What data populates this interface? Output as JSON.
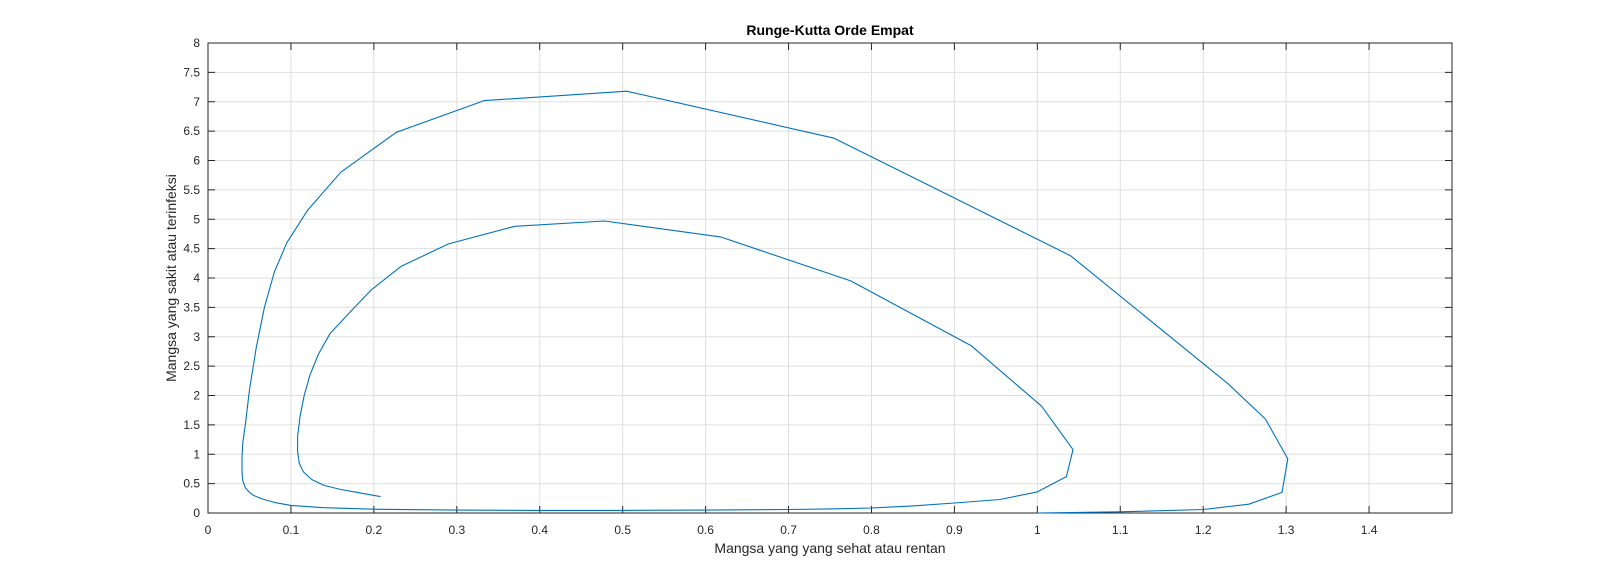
{
  "chart_data": {
    "type": "line",
    "title": "Runge-Kutta Orde Empat",
    "xlabel": "Mangsa yang yang sehat atau rentan",
    "ylabel": "Mangsa yang sakit atau terinfeksi",
    "xlim": [
      0,
      1.5
    ],
    "ylim": [
      0,
      8
    ],
    "xticks": [
      0,
      0.1,
      0.2,
      0.3,
      0.4,
      0.5,
      0.6,
      0.7,
      0.8,
      0.9,
      1,
      1.1,
      1.2,
      1.3,
      1.4
    ],
    "yticks": [
      0,
      0.5,
      1,
      1.5,
      2,
      2.5,
      3,
      3.5,
      4,
      4.5,
      5,
      5.5,
      6,
      6.5,
      7,
      7.5,
      8
    ],
    "xtick_labels": [
      "0",
      "0.1",
      "0.2",
      "0.3",
      "0.4",
      "0.5",
      "0.6",
      "0.7",
      "0.8",
      "0.9",
      "1",
      "1.1",
      "1.2",
      "1.3",
      "1.4"
    ],
    "ytick_labels": [
      "0",
      "0.5",
      "1",
      "1.5",
      "2",
      "2.5",
      "3",
      "3.5",
      "4",
      "4.5",
      "5",
      "5.5",
      "6",
      "6.5",
      "7",
      "7.5",
      "8"
    ],
    "grid": true,
    "box": true,
    "color": "#0072BD",
    "series": [
      {
        "x": [
          1.0,
          1.1,
          1.2,
          1.255,
          1.295,
          1.302,
          1.275,
          1.23,
          1.04,
          0.755,
          0.505,
          0.333,
          0.227,
          0.16,
          0.12,
          0.095,
          0.08,
          0.068,
          0.058,
          0.05,
          0.045,
          0.042,
          0.041,
          0.041,
          0.042,
          0.045,
          0.05,
          0.055,
          0.065,
          0.08,
          0.1,
          0.14,
          0.2,
          0.3,
          0.4,
          0.5,
          0.6,
          0.7,
          0.75,
          0.8,
          0.85,
          0.9,
          0.955,
          1.0,
          1.035,
          1.043,
          1.005,
          0.92,
          0.775,
          0.618,
          0.478,
          0.37,
          0.29,
          0.233,
          0.197,
          0.17,
          0.147,
          0.133,
          0.123,
          0.116,
          0.111,
          0.108,
          0.108,
          0.11,
          0.115,
          0.125,
          0.14,
          0.16,
          0.18,
          0.2,
          0.208
        ],
        "y": [
          0.0,
          0.02,
          0.06,
          0.15,
          0.35,
          0.92,
          1.6,
          2.2,
          4.38,
          6.38,
          7.18,
          7.02,
          6.48,
          5.8,
          5.15,
          4.6,
          4.1,
          3.5,
          2.8,
          2.1,
          1.5,
          1.2,
          0.95,
          0.7,
          0.55,
          0.43,
          0.35,
          0.3,
          0.24,
          0.18,
          0.13,
          0.09,
          0.065,
          0.05,
          0.045,
          0.045,
          0.05,
          0.06,
          0.07,
          0.085,
          0.12,
          0.17,
          0.23,
          0.36,
          0.62,
          1.08,
          1.82,
          2.85,
          3.95,
          4.7,
          4.97,
          4.88,
          4.58,
          4.2,
          3.8,
          3.4,
          3.05,
          2.7,
          2.35,
          2.0,
          1.65,
          1.3,
          1.05,
          0.85,
          0.7,
          0.57,
          0.47,
          0.4,
          0.35,
          0.3,
          0.28
        ]
      }
    ]
  }
}
